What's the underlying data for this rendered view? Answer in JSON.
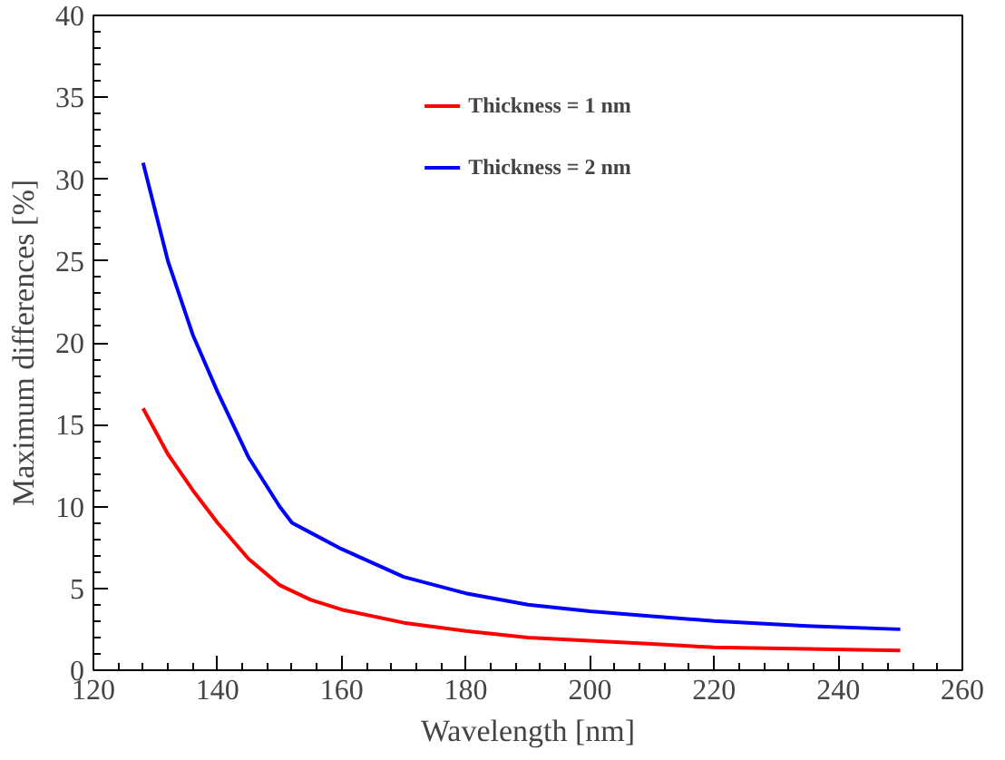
{
  "chart_data": {
    "type": "line",
    "xlabel": "Wavelength [nm]",
    "ylabel": "Maximum differences [%]",
    "xlim": [
      120,
      260
    ],
    "ylim": [
      0,
      40
    ],
    "xticks": [
      120,
      140,
      160,
      180,
      200,
      220,
      240,
      260
    ],
    "yticks": [
      0,
      5,
      10,
      15,
      20,
      25,
      30,
      35,
      40
    ],
    "grid": false,
    "legend": "top",
    "marker": "none",
    "line_style": "solid",
    "series": [
      {
        "name": "Thickness = 1 nm",
        "color": "#ff0000",
        "x": [
          128,
          132,
          136,
          140,
          145,
          150,
          155,
          160,
          170,
          180,
          190,
          200,
          210,
          220,
          235,
          250
        ],
        "values": [
          16,
          13.2,
          11,
          9,
          6.8,
          5.2,
          4.3,
          3.7,
          2.9,
          2.4,
          2.0,
          1.8,
          1.6,
          1.4,
          1.3,
          1.2
        ]
      },
      {
        "name": "Thickness = 2 nm",
        "color": "#0000ff",
        "x": [
          128,
          132,
          136,
          140,
          145,
          150,
          152,
          155,
          160,
          170,
          180,
          190,
          200,
          210,
          220,
          235,
          250
        ],
        "values": [
          31,
          25,
          20.5,
          17,
          13,
          10,
          9,
          8.4,
          7.4,
          5.7,
          4.7,
          4.0,
          3.6,
          3.3,
          3.0,
          2.7,
          2.5
        ]
      }
    ]
  }
}
